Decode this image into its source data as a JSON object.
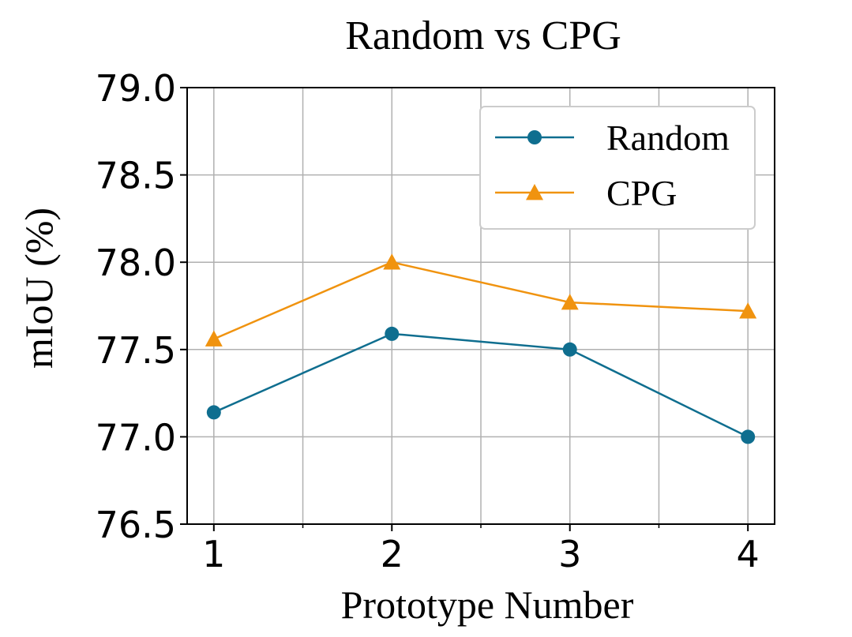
{
  "chart_data": {
    "type": "line",
    "title": "Random vs CPG",
    "xlabel": "Prototype Number",
    "ylabel": "mIoU (%)",
    "x": [
      1,
      2,
      3,
      4
    ],
    "xlim": [
      0.85,
      4.15
    ],
    "ylim": [
      76.5,
      79.0
    ],
    "yticks": [
      "76.5",
      "77.0",
      "77.5",
      "78.0",
      "78.5",
      "79.0"
    ],
    "xticks": [
      "1",
      "2",
      "3",
      "4"
    ],
    "minor_xticks": [
      1.5,
      2.5,
      3.5
    ],
    "grid": true,
    "legend_position": "top-right",
    "series": [
      {
        "name": "Random",
        "values": [
          77.14,
          77.59,
          77.5,
          77.0
        ],
        "color": "#0f6e8f",
        "marker": "circle"
      },
      {
        "name": "CPG",
        "values": [
          77.56,
          78.0,
          77.77,
          77.72
        ],
        "color": "#f0930f",
        "marker": "triangle"
      }
    ]
  }
}
